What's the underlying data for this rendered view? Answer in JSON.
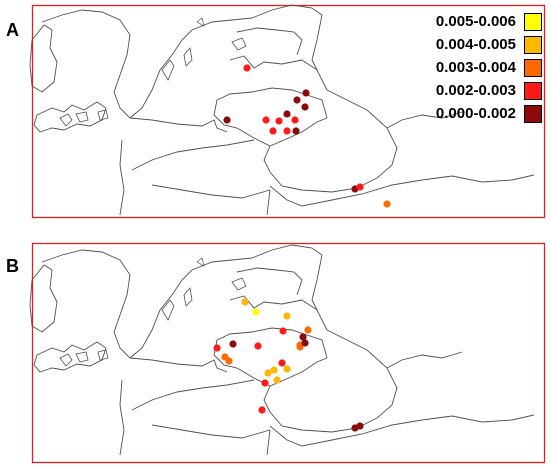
{
  "panels": [
    {
      "label": "A"
    },
    {
      "label": "B"
    }
  ],
  "legend": {
    "items": [
      {
        "label": "0.005-0.006",
        "color": "#FFFF00"
      },
      {
        "label": "0.004-0.005",
        "color": "#FFB800"
      },
      {
        "label": "0.003-0.004",
        "color": "#FF6A00"
      },
      {
        "label": "0.002-0.003",
        "color": "#FF1A1A"
      },
      {
        "label": "0.000-0.002",
        "color": "#8B0A0A"
      }
    ]
  },
  "map_style": {
    "frame_color": "#E02020",
    "border_color": "#505050",
    "marker_outline": "none"
  },
  "sample_sites": {
    "A": [
      {
        "class": "0.002-0.003"
      },
      {
        "class": "0.000-0.002"
      },
      {
        "class": "0.000-0.002"
      },
      {
        "class": "0.000-0.002"
      },
      {
        "class": "0.000-0.002"
      },
      {
        "class": "0.002-0.003"
      },
      {
        "class": "0.002-0.003"
      },
      {
        "class": "0.002-0.003"
      },
      {
        "class": "0.000-0.002"
      },
      {
        "class": "0.002-0.003"
      },
      {
        "class": "0.002-0.003"
      },
      {
        "class": "0.000-0.002"
      },
      {
        "class": "0.000-0.002"
      },
      {
        "class": "0.002-0.003"
      },
      {
        "class": "0.003-0.004"
      }
    ],
    "B": [
      {
        "class": "0.004-0.005"
      },
      {
        "class": "0.005-0.006"
      },
      {
        "class": "0.004-0.005"
      },
      {
        "class": "0.003-0.004"
      },
      {
        "class": "0.003-0.004"
      },
      {
        "class": "0.000-0.002"
      },
      {
        "class": "0.002-0.003"
      },
      {
        "class": "0.000-0.002"
      },
      {
        "class": "0.002-0.003"
      },
      {
        "class": "0.002-0.003"
      },
      {
        "class": "0.003-0.004"
      },
      {
        "class": "0.003-0.004"
      },
      {
        "class": "0.002-0.003"
      },
      {
        "class": "0.004-0.005"
      },
      {
        "class": "0.004-0.005"
      },
      {
        "class": "0.003-0.004"
      },
      {
        "class": "0.000-0.002"
      },
      {
        "class": "0.004-0.005"
      },
      {
        "class": "0.004-0.005"
      },
      {
        "class": "0.002-0.003"
      },
      {
        "class": "0.002-0.003"
      },
      {
        "class": "0.000-0.002"
      },
      {
        "class": "0.000-0.002"
      }
    ]
  }
}
